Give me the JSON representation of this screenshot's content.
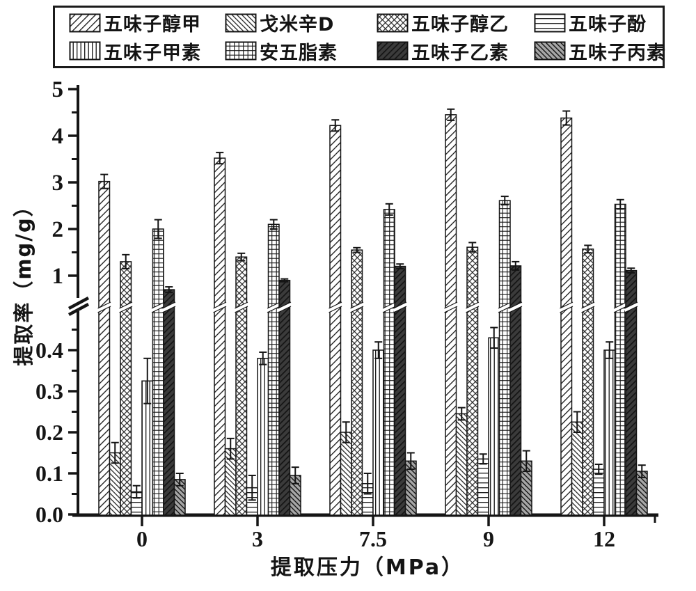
{
  "figure": {
    "background": "#ffffff"
  },
  "colors": {
    "axis": "#151515",
    "bar_outline": "#141414",
    "hatch_line": "#141414",
    "dark_series_fill": "#3b3b3b",
    "gray_series_fill": "#a6a6a6",
    "legend_border": "#1b1b1b"
  },
  "chart_data": {
    "type": "bar",
    "title": "",
    "xlabel": "提取压力（MPa）",
    "ylabel": "提取率（mg/g）",
    "categories": [
      "0",
      "3",
      "7.5",
      "9",
      "12"
    ],
    "legend_position": "top",
    "grid": false,
    "error_bars": true,
    "broken_y_axis": {
      "lower_range": [
        0.0,
        0.45
      ],
      "lower_tick_labels": [
        "0.0",
        "0.1",
        "0.2",
        "0.3",
        "0.4"
      ],
      "lower_tick_values": [
        0.0,
        0.1,
        0.2,
        0.3,
        0.4
      ],
      "lower_minor_tick_values": [
        0.05,
        0.15,
        0.25,
        0.35,
        0.45
      ],
      "upper_range": [
        0.5,
        5.0
      ],
      "upper_tick_labels": [
        "1",
        "2",
        "3",
        "4",
        "5"
      ],
      "upper_tick_values": [
        1,
        2,
        3,
        4,
        5
      ],
      "upper_minor_tick_values": [
        1.5,
        2.5,
        3.5,
        4.5
      ]
    },
    "series": [
      {
        "name": "五味子醇甲",
        "pattern": "diag-forward",
        "values": [
          3.02,
          3.52,
          4.22,
          4.45,
          4.38
        ],
        "errors": [
          0.15,
          0.12,
          0.12,
          0.12,
          0.15
        ]
      },
      {
        "name": "戈米辛D",
        "pattern": "diag-back",
        "values": [
          0.15,
          0.16,
          0.2,
          0.245,
          0.225
        ],
        "errors": [
          0.025,
          0.025,
          0.025,
          0.015,
          0.025
        ]
      },
      {
        "name": "五味子醇乙",
        "pattern": "diag-cross",
        "values": [
          1.3,
          1.4,
          1.55,
          1.61,
          1.57
        ],
        "errors": [
          0.15,
          0.08,
          0.05,
          0.1,
          0.08
        ]
      },
      {
        "name": "五味子酚",
        "pattern": "horizontal",
        "values": [
          0.055,
          0.065,
          0.075,
          0.135,
          0.11
        ],
        "errors": [
          0.015,
          0.03,
          0.025,
          0.012,
          0.012
        ]
      },
      {
        "name": "五味子甲素",
        "pattern": "vertical",
        "values": [
          0.325,
          0.38,
          0.4,
          0.43,
          0.4
        ],
        "errors": [
          0.055,
          0.015,
          0.02,
          0.025,
          0.02
        ]
      },
      {
        "name": "安五脂素",
        "pattern": "grid",
        "values": [
          2.0,
          2.1,
          2.42,
          2.61,
          2.53
        ],
        "errors": [
          0.2,
          0.1,
          0.12,
          0.09,
          0.1
        ]
      },
      {
        "name": "五味子乙素",
        "pattern": "dark-diag",
        "values": [
          0.7,
          0.9,
          1.2,
          1.21,
          1.11
        ],
        "errors": [
          0.06,
          0.03,
          0.05,
          0.09,
          0.05
        ]
      },
      {
        "name": "五味子丙素",
        "pattern": "gray-diag",
        "values": [
          0.085,
          0.095,
          0.13,
          0.13,
          0.105
        ],
        "errors": [
          0.015,
          0.02,
          0.02,
          0.025,
          0.015
        ]
      }
    ]
  }
}
